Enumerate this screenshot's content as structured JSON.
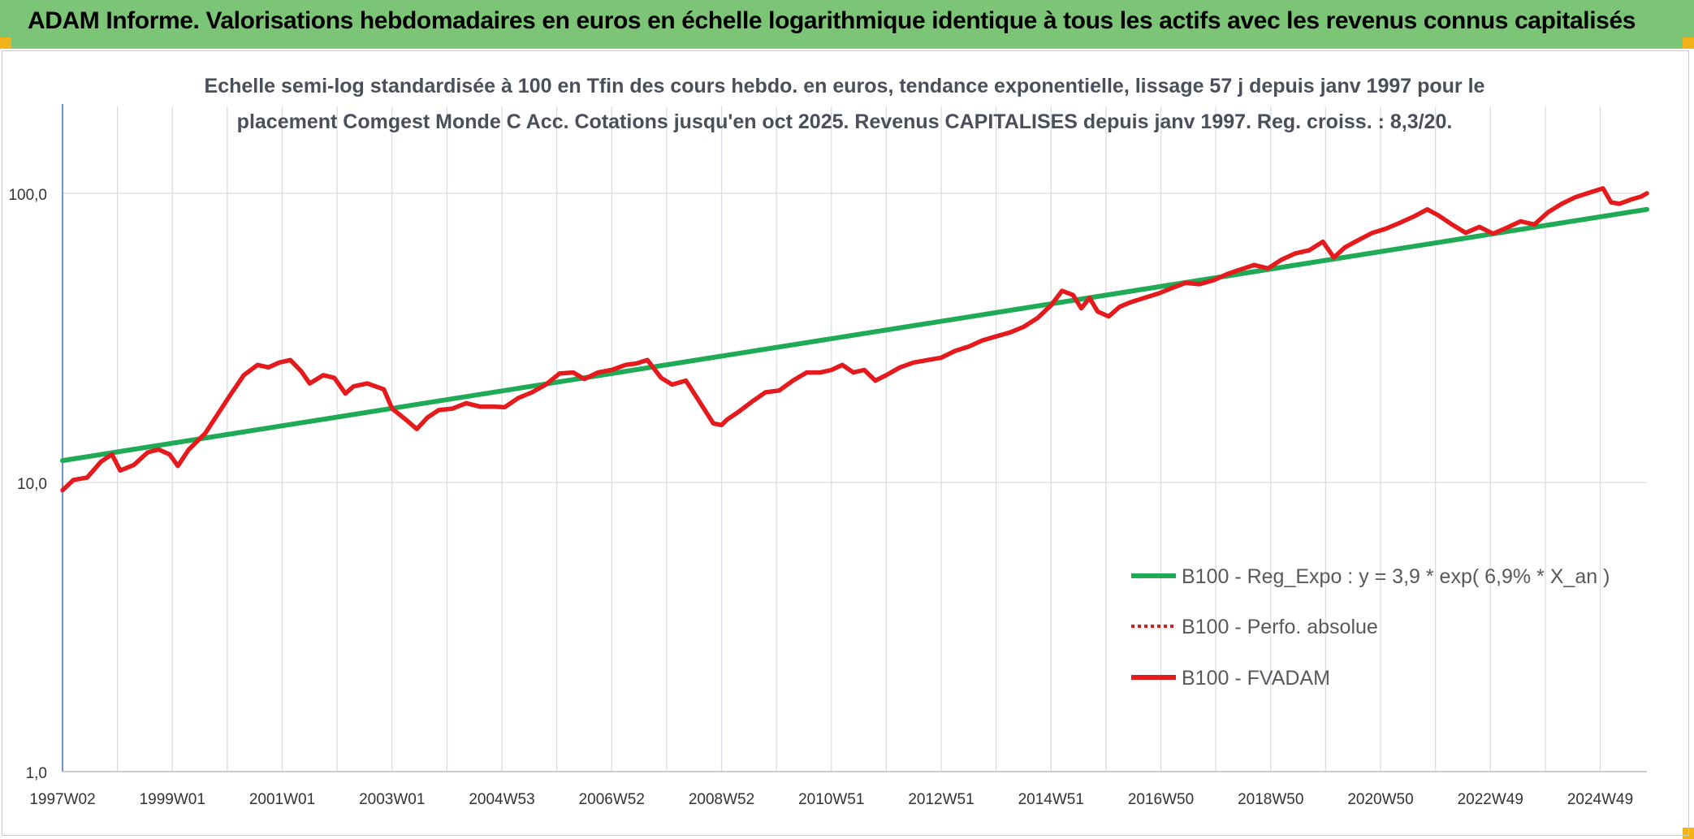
{
  "banner": {
    "title": "ADAM Informe. Valorisations hebdomadaires en euros en échelle logarithmique identique à tous les actifs avec les revenus connus capitalisés"
  },
  "colors": {
    "banner": "#7cc576",
    "corner": "#f2b21a",
    "trend": "#1faa55",
    "series": "#e41a1c",
    "grid": "#d9dde3",
    "axis": "#4472c4",
    "subtitle_text": "#4a4f5a"
  },
  "chart_data": {
    "type": "line",
    "title_lines": [
      "Echelle semi-log standardisée à 100 en Tfin des cours hebdo. en euros, tendance exponentielle, lissage 57 j depuis janv 1997 pour le",
      "placement Comgest Monde C Acc. Cotations jusqu'en oct 2025. Revenus CAPITALISES depuis janv 1997. Reg. croiss. : 8,3/20."
    ],
    "y_scale": "log",
    "ylim": [
      1,
      200
    ],
    "xlim": [
      1997.0,
      2025.85
    ],
    "y_ticks": [
      {
        "value": 1,
        "label": "1,0"
      },
      {
        "value": 10,
        "label": "10,0"
      },
      {
        "value": 100,
        "label": "100,0"
      }
    ],
    "x_tick_labels": [
      {
        "x": 1997.0,
        "label": "1997W02"
      },
      {
        "x": 1999.0,
        "label": "1999W01"
      },
      {
        "x": 2001.0,
        "label": "2001W01"
      },
      {
        "x": 2003.0,
        "label": "2003W01"
      },
      {
        "x": 2005.0,
        "label": "2004W53"
      },
      {
        "x": 2007.0,
        "label": "2006W52"
      },
      {
        "x": 2009.0,
        "label": "2008W52"
      },
      {
        "x": 2011.0,
        "label": "2010W51"
      },
      {
        "x": 2013.0,
        "label": "2012W51"
      },
      {
        "x": 2015.0,
        "label": "2014W51"
      },
      {
        "x": 2017.0,
        "label": "2016W50"
      },
      {
        "x": 2019.0,
        "label": "2018W50"
      },
      {
        "x": 2021.0,
        "label": "2020W50"
      },
      {
        "x": 2023.0,
        "label": "2022W49"
      },
      {
        "x": 2025.0,
        "label": "2024W49"
      }
    ],
    "grid": true,
    "legend_position": "lower-right",
    "series": [
      {
        "name": "B100 - Reg_Expo : y = 3,9 * exp( 6,9% *  X_an )",
        "style": "solid",
        "color": "#1faa55",
        "points": [
          [
            1997.0,
            11.9
          ],
          [
            2025.85,
            88.0
          ]
        ]
      },
      {
        "name": "B100 - Perfo. absolue",
        "style": "dotted",
        "color": "#e41a1c",
        "points": []
      },
      {
        "name": "B100 - FVADAM",
        "style": "solid",
        "color": "#e41a1c",
        "points": [
          [
            1997.0,
            9.4
          ],
          [
            1997.2,
            10.2
          ],
          [
            1997.45,
            10.4
          ],
          [
            1997.7,
            11.8
          ],
          [
            1997.9,
            12.5
          ],
          [
            1998.05,
            11.0
          ],
          [
            1998.3,
            11.5
          ],
          [
            1998.55,
            12.7
          ],
          [
            1998.75,
            13.0
          ],
          [
            1998.95,
            12.5
          ],
          [
            1999.1,
            11.4
          ],
          [
            1999.3,
            13.0
          ],
          [
            1999.6,
            14.8
          ],
          [
            1999.85,
            17.5
          ],
          [
            2000.05,
            20.0
          ],
          [
            2000.3,
            23.5
          ],
          [
            2000.55,
            25.5
          ],
          [
            2000.75,
            25.0
          ],
          [
            2000.95,
            26.0
          ],
          [
            2001.15,
            26.5
          ],
          [
            2001.35,
            24.2
          ],
          [
            2001.5,
            22.0
          ],
          [
            2001.75,
            23.5
          ],
          [
            2001.95,
            23.0
          ],
          [
            2002.15,
            20.3
          ],
          [
            2002.3,
            21.5
          ],
          [
            2002.55,
            22.0
          ],
          [
            2002.85,
            21.0
          ],
          [
            2003.0,
            18.0
          ],
          [
            2003.25,
            16.5
          ],
          [
            2003.45,
            15.3
          ],
          [
            2003.65,
            16.8
          ],
          [
            2003.85,
            17.8
          ],
          [
            2004.1,
            18.0
          ],
          [
            2004.35,
            18.8
          ],
          [
            2004.6,
            18.3
          ],
          [
            2004.85,
            18.3
          ],
          [
            2005.05,
            18.2
          ],
          [
            2005.3,
            19.6
          ],
          [
            2005.55,
            20.5
          ],
          [
            2005.8,
            21.8
          ],
          [
            2006.05,
            23.8
          ],
          [
            2006.3,
            24.0
          ],
          [
            2006.5,
            22.8
          ],
          [
            2006.75,
            24.0
          ],
          [
            2007.0,
            24.5
          ],
          [
            2007.25,
            25.5
          ],
          [
            2007.45,
            25.8
          ],
          [
            2007.65,
            26.5
          ],
          [
            2007.9,
            23.0
          ],
          [
            2008.1,
            21.8
          ],
          [
            2008.35,
            22.5
          ],
          [
            2008.6,
            19.0
          ],
          [
            2008.85,
            16.0
          ],
          [
            2009.0,
            15.8
          ],
          [
            2009.1,
            16.5
          ],
          [
            2009.3,
            17.5
          ],
          [
            2009.55,
            19.0
          ],
          [
            2009.8,
            20.5
          ],
          [
            2010.05,
            20.8
          ],
          [
            2010.3,
            22.5
          ],
          [
            2010.55,
            24.0
          ],
          [
            2010.8,
            24.0
          ],
          [
            2011.0,
            24.5
          ],
          [
            2011.2,
            25.5
          ],
          [
            2011.4,
            24.0
          ],
          [
            2011.6,
            24.5
          ],
          [
            2011.8,
            22.5
          ],
          [
            2012.0,
            23.5
          ],
          [
            2012.25,
            25.0
          ],
          [
            2012.5,
            26.0
          ],
          [
            2012.75,
            26.5
          ],
          [
            2013.0,
            27.0
          ],
          [
            2013.25,
            28.5
          ],
          [
            2013.5,
            29.5
          ],
          [
            2013.75,
            31.0
          ],
          [
            2014.0,
            32.0
          ],
          [
            2014.25,
            33.0
          ],
          [
            2014.5,
            34.5
          ],
          [
            2014.75,
            37.0
          ],
          [
            2015.0,
            41.0
          ],
          [
            2015.2,
            46.0
          ],
          [
            2015.4,
            44.5
          ],
          [
            2015.55,
            40.0
          ],
          [
            2015.7,
            43.5
          ],
          [
            2015.85,
            39.0
          ],
          [
            2016.05,
            37.5
          ],
          [
            2016.25,
            40.5
          ],
          [
            2016.45,
            42.0
          ],
          [
            2016.7,
            43.5
          ],
          [
            2016.95,
            45.0
          ],
          [
            2017.2,
            47.0
          ],
          [
            2017.45,
            49.0
          ],
          [
            2017.7,
            48.5
          ],
          [
            2017.95,
            50.0
          ],
          [
            2018.2,
            52.5
          ],
          [
            2018.45,
            54.5
          ],
          [
            2018.7,
            56.5
          ],
          [
            2018.95,
            55.0
          ],
          [
            2019.2,
            59.0
          ],
          [
            2019.45,
            62.0
          ],
          [
            2019.7,
            63.5
          ],
          [
            2019.95,
            68.0
          ],
          [
            2020.15,
            60.0
          ],
          [
            2020.35,
            65.0
          ],
          [
            2020.6,
            69.0
          ],
          [
            2020.85,
            73.0
          ],
          [
            2021.1,
            75.5
          ],
          [
            2021.35,
            79.0
          ],
          [
            2021.6,
            83.0
          ],
          [
            2021.85,
            88.0
          ],
          [
            2022.05,
            84.0
          ],
          [
            2022.3,
            78.0
          ],
          [
            2022.55,
            73.0
          ],
          [
            2022.8,
            76.5
          ],
          [
            2023.05,
            72.5
          ],
          [
            2023.3,
            76.0
          ],
          [
            2023.55,
            80.0
          ],
          [
            2023.8,
            78.0
          ],
          [
            2024.05,
            86.0
          ],
          [
            2024.3,
            92.0
          ],
          [
            2024.55,
            97.0
          ],
          [
            2024.8,
            100.5
          ],
          [
            2025.05,
            104.0
          ],
          [
            2025.2,
            93.0
          ],
          [
            2025.35,
            92.0
          ],
          [
            2025.55,
            95.0
          ],
          [
            2025.75,
            97.5
          ],
          [
            2025.85,
            100.0
          ]
        ]
      }
    ]
  }
}
